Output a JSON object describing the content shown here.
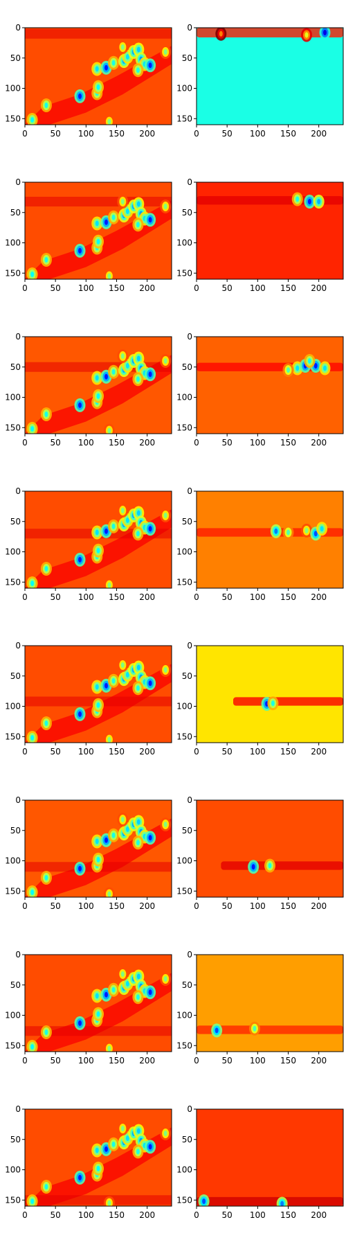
{
  "chart_data": {
    "type": "heatmap",
    "layout": {
      "rows": 8,
      "cols": 2
    },
    "colormap": "jet",
    "xlim": [
      0,
      240
    ],
    "ylim": [
      160,
      0
    ],
    "xticks": [
      0,
      50,
      100,
      150,
      200
    ],
    "yticks": [
      0,
      50,
      100,
      150
    ],
    "xtick_labels": [
      "0",
      "50",
      "100",
      "150",
      "200"
    ],
    "ytick_labels": [
      "0",
      "50",
      "100",
      "150"
    ],
    "left_panels": [
      {
        "row": 0,
        "background_level": 0.8,
        "band_level": 0.9,
        "band_y": 10
      },
      {
        "row": 1,
        "background_level": 0.8,
        "band_level": 0.9,
        "band_y": 32
      },
      {
        "row": 2,
        "background_level": 0.79,
        "band_level": 0.9,
        "band_y": 50
      },
      {
        "row": 3,
        "background_level": 0.8,
        "band_level": 0.9,
        "band_y": 70
      },
      {
        "row": 4,
        "background_level": 0.8,
        "band_level": 0.9,
        "band_y": 92
      },
      {
        "row": 5,
        "background_level": 0.79,
        "band_level": 0.9,
        "band_y": 110
      },
      {
        "row": 6,
        "background_level": 0.8,
        "band_level": 0.9,
        "band_y": 126
      },
      {
        "row": 7,
        "background_level": 0.8,
        "band_level": 0.9,
        "band_y": 150
      }
    ],
    "left_spots": [
      {
        "x": 12,
        "y": 152,
        "v": 0.38
      },
      {
        "x": 35,
        "y": 128,
        "v": 0.4
      },
      {
        "x": 90,
        "y": 113,
        "v": 0.15
      },
      {
        "x": 118,
        "y": 108,
        "v": 0.4
      },
      {
        "x": 120,
        "y": 98,
        "v": 0.38
      },
      {
        "x": 118,
        "y": 68,
        "v": 0.35
      },
      {
        "x": 133,
        "y": 66,
        "v": 0.15
      },
      {
        "x": 145,
        "y": 58,
        "v": 0.4
      },
      {
        "x": 162,
        "y": 55,
        "v": 0.3
      },
      {
        "x": 168,
        "y": 48,
        "v": 0.35
      },
      {
        "x": 178,
        "y": 40,
        "v": 0.3
      },
      {
        "x": 186,
        "y": 36,
        "v": 0.33
      },
      {
        "x": 190,
        "y": 52,
        "v": 0.28
      },
      {
        "x": 196,
        "y": 60,
        "v": 0.35
      },
      {
        "x": 205,
        "y": 62,
        "v": 0.15
      },
      {
        "x": 185,
        "y": 70,
        "v": 0.4
      },
      {
        "x": 160,
        "y": 32,
        "v": 0.5
      },
      {
        "x": 230,
        "y": 40,
        "v": 0.5
      },
      {
        "x": 138,
        "y": 155,
        "v": 0.5
      }
    ],
    "right_panels": [
      {
        "row": 0,
        "background_level": 0.4,
        "band_y": 8,
        "band_height": 16,
        "band_level": 0.85,
        "band_x": [
          0,
          240
        ],
        "spots": [
          {
            "x": 210,
            "y": 8,
            "v": 0.1
          },
          {
            "x": 180,
            "y": 12,
            "v": 0.6
          },
          {
            "x": 40,
            "y": 10,
            "v": 0.75
          }
        ]
      },
      {
        "row": 1,
        "background_level": 0.84,
        "band_y": 30,
        "band_height": 14,
        "band_level": 0.9,
        "band_x": [
          0,
          240
        ],
        "spots": [
          {
            "x": 185,
            "y": 32,
            "v": 0.15
          },
          {
            "x": 165,
            "y": 28,
            "v": 0.4
          },
          {
            "x": 200,
            "y": 32,
            "v": 0.3
          }
        ]
      },
      {
        "row": 2,
        "background_level": 0.78,
        "band_y": 50,
        "band_height": 14,
        "band_level": 0.87,
        "band_x": [
          0,
          240
        ],
        "spots": [
          {
            "x": 165,
            "y": 52,
            "v": 0.35
          },
          {
            "x": 178,
            "y": 48,
            "v": 0.15
          },
          {
            "x": 195,
            "y": 48,
            "v": 0.15
          },
          {
            "x": 210,
            "y": 52,
            "v": 0.35
          },
          {
            "x": 150,
            "y": 55,
            "v": 0.45
          },
          {
            "x": 185,
            "y": 40,
            "v": 0.4
          }
        ]
      },
      {
        "row": 3,
        "background_level": 0.75,
        "band_y": 68,
        "band_height": 14,
        "band_level": 0.85,
        "band_x": [
          0,
          240
        ],
        "spots": [
          {
            "x": 130,
            "y": 66,
            "v": 0.25
          },
          {
            "x": 150,
            "y": 68,
            "v": 0.45
          },
          {
            "x": 180,
            "y": 65,
            "v": 0.5
          },
          {
            "x": 195,
            "y": 70,
            "v": 0.2
          },
          {
            "x": 205,
            "y": 62,
            "v": 0.35
          }
        ]
      },
      {
        "row": 4,
        "background_level": 0.65,
        "band_y": 92,
        "band_height": 14,
        "band_level": 0.88,
        "band_x": [
          60,
          240
        ],
        "spots": [
          {
            "x": 115,
            "y": 96,
            "v": 0.15
          },
          {
            "x": 125,
            "y": 95,
            "v": 0.4
          }
        ]
      },
      {
        "row": 5,
        "background_level": 0.8,
        "band_y": 108,
        "band_height": 14,
        "band_level": 0.9,
        "band_x": [
          40,
          240
        ],
        "spots": [
          {
            "x": 93,
            "y": 110,
            "v": 0.15
          },
          {
            "x": 120,
            "y": 108,
            "v": 0.4
          }
        ]
      },
      {
        "row": 6,
        "background_level": 0.72,
        "band_y": 124,
        "band_height": 14,
        "band_level": 0.84,
        "band_x": [
          0,
          240
        ],
        "spots": [
          {
            "x": 33,
            "y": 125,
            "v": 0.2
          },
          {
            "x": 95,
            "y": 122,
            "v": 0.45
          }
        ]
      },
      {
        "row": 7,
        "background_level": 0.82,
        "band_y": 152,
        "band_height": 14,
        "band_level": 0.92,
        "band_x": [
          0,
          240
        ],
        "spots": [
          {
            "x": 12,
            "y": 152,
            "v": 0.2
          },
          {
            "x": 140,
            "y": 156,
            "v": 0.25
          }
        ]
      }
    ]
  }
}
